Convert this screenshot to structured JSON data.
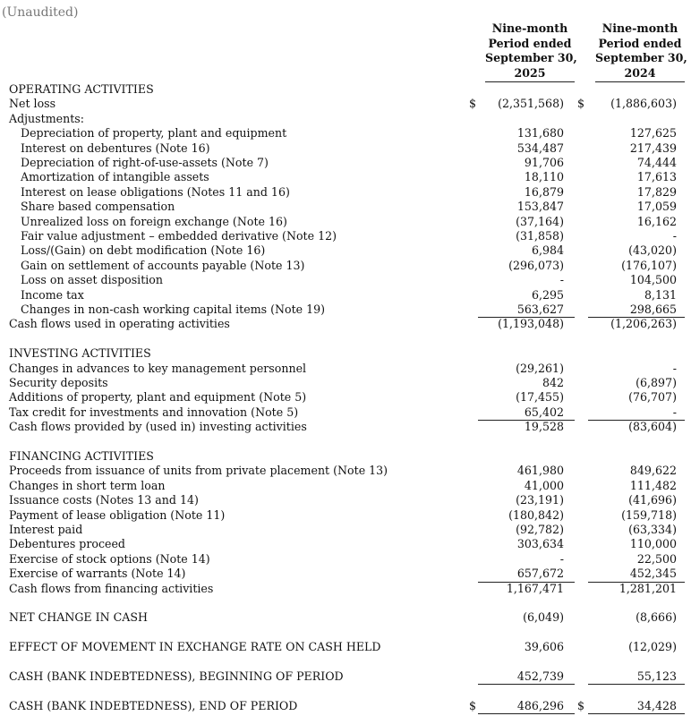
{
  "unaudited": "(Unaudited)",
  "columns": [
    {
      "lines": [
        "Nine-month",
        "Period ended",
        "September 30,",
        "2025"
      ]
    },
    {
      "lines": [
        "Nine-month",
        "Period ended",
        "September 30,",
        "2024"
      ]
    }
  ],
  "currency_symbol": "$",
  "rows": [
    {
      "label": "OPERATING ACTIVITIES"
    },
    {
      "label": "Net loss",
      "c1": "(2,351,568)",
      "c2": "(1,886,603)",
      "dollar": true
    },
    {
      "label": "Adjustments:"
    },
    {
      "label": "Depreciation of property, plant and equipment",
      "indent": true,
      "c1": "131,680",
      "c2": "127,625"
    },
    {
      "label": "Interest on debentures (Note 16)",
      "indent": true,
      "c1": "534,487",
      "c2": "217,439"
    },
    {
      "label": "Depreciation of right-of-use-assets (Note 7)",
      "indent": true,
      "c1": "91,706",
      "c2": "74,444"
    },
    {
      "label": "Amortization of intangible assets",
      "indent": true,
      "c1": "18,110",
      "c2": "17,613"
    },
    {
      "label": "Interest on lease obligations (Notes 11 and 16)",
      "indent": true,
      "c1": "16,879",
      "c2": "17,829"
    },
    {
      "label": "Share based compensation",
      "indent": true,
      "c1": "153,847",
      "c2": "17,059"
    },
    {
      "label": "Unrealized loss on foreign exchange (Note 16)",
      "indent": true,
      "c1": "(37,164)",
      "c2": "16,162"
    },
    {
      "label": "Fair value adjustment – embedded derivative (Note 12)",
      "indent": true,
      "c1": "(31,858)",
      "c2": "-"
    },
    {
      "label": "Loss/(Gain) on debt modification (Note 16)",
      "indent": true,
      "c1": "6,984",
      "c2": "(43,020)"
    },
    {
      "label": "Gain on settlement of accounts payable (Note 13)",
      "indent": true,
      "c1": "(296,073)",
      "c2": "(176,107)"
    },
    {
      "label": "Loss on asset disposition",
      "indent": true,
      "c1": "-",
      "c2": "104,500"
    },
    {
      "label": "Income tax",
      "indent": true,
      "c1": "6,295",
      "c2": "8,131"
    },
    {
      "label": "Changes in non-cash working capital items (Note 19)",
      "indent": true,
      "c1": "563,627",
      "c2": "298,665"
    },
    {
      "label": "Cash flows used in operating activities",
      "c1": "(1,193,048)",
      "c2": "(1,206,263)",
      "total": true
    },
    {
      "label": ""
    },
    {
      "label": "INVESTING ACTIVITIES"
    },
    {
      "label": "Changes in advances to key management personnel",
      "c1": "(29,261)",
      "c2": "-"
    },
    {
      "label": "Security deposits",
      "c1": "842",
      "c2": "(6,897)"
    },
    {
      "label": "Additions of property, plant and equipment (Note 5)",
      "c1": "(17,455)",
      "c2": "(76,707)"
    },
    {
      "label": "Tax credit for investments and innovation (Note 5)",
      "c1": "65,402",
      "c2": "-"
    },
    {
      "label": "Cash flows provided by (used in) investing activities",
      "c1": "19,528",
      "c2": "(83,604)",
      "total": true
    },
    {
      "label": ""
    },
    {
      "label": "FINANCING ACTIVITIES"
    },
    {
      "label": "Proceeds from issuance of units from private placement (Note 13)",
      "c1": "461,980",
      "c2": "849,622"
    },
    {
      "label": "Changes in short term loan",
      "c1": "41,000",
      "c2": "111,482"
    },
    {
      "label": "Issuance costs (Notes 13 and 14)",
      "c1": "(23,191)",
      "c2": "(41,696)"
    },
    {
      "label": "Payment of lease obligation (Note 11)",
      "c1": "(180,842)",
      "c2": "(159,718)"
    },
    {
      "label": "Interest paid",
      "c1": "(92,782)",
      "c2": "(63,334)"
    },
    {
      "label": "Debentures proceed",
      "c1": "303,634",
      "c2": "110,000"
    },
    {
      "label": "Exercise of stock options (Note 14)",
      "c1": "-",
      "c2": "22,500"
    },
    {
      "label": "Exercise of warrants (Note 14)",
      "c1": "657,672",
      "c2": "452,345"
    },
    {
      "label": "Cash flows from financing activities",
      "c1": "1,167,471",
      "c2": "1,281,201",
      "total": true
    },
    {
      "label": ""
    },
    {
      "label": "NET CHANGE IN CASH",
      "c1": "(6,049)",
      "c2": "(8,666)"
    },
    {
      "label": ""
    },
    {
      "label": "EFFECT OF MOVEMENT IN EXCHANGE RATE ON CASH HELD",
      "c1": "39,606",
      "c2": "(12,029)"
    },
    {
      "label": ""
    },
    {
      "label": "CASH (BANK INDEBTEDNESS), BEGINNING OF PERIOD",
      "c1": "452,739",
      "c2": "55,123",
      "underline": true
    },
    {
      "label": ""
    },
    {
      "label": "CASH (BANK INDEBTEDNESS), END OF PERIOD",
      "c1": "486,296",
      "c2": "34,428",
      "dollar": true,
      "final": true
    }
  ]
}
